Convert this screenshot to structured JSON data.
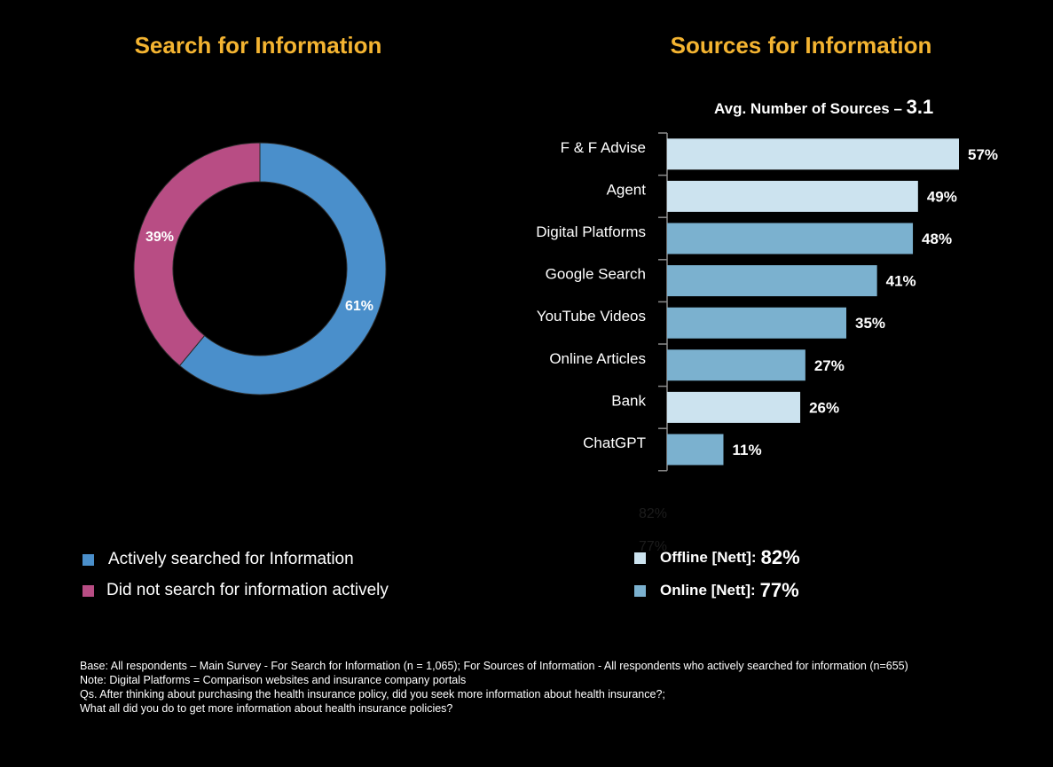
{
  "left_chart": {
    "title": "Search for Information",
    "legend": [
      {
        "label": "Actively searched for Information",
        "color": "#4a8fcb"
      },
      {
        "label": "Did not search for information actively",
        "color": "#b84d84"
      }
    ]
  },
  "right_chart": {
    "title": "Sources for Information",
    "avg_label": "Avg. Number of Sources –",
    "avg_value": "3.1",
    "ghost_labels": [
      "82%",
      "77%"
    ],
    "legend": [
      {
        "label": "Offline [Nett]:",
        "value": "82%",
        "color": "#cce3ef"
      },
      {
        "label": "Online [Nett]:",
        "value": "77%",
        "color": "#7bb1cf"
      }
    ]
  },
  "chart_data": [
    {
      "type": "pie",
      "title": "Search for Information",
      "donut": true,
      "categories": [
        "Actively searched for Information",
        "Did not search for information actively"
      ],
      "values": [
        61,
        39
      ],
      "labels": [
        "61%",
        "39%"
      ],
      "colors": [
        "#4a8fcb",
        "#b84d84"
      ]
    },
    {
      "type": "bar",
      "orientation": "horizontal",
      "title": "Sources for Information",
      "categories": [
        "F & F Advise",
        "Agent",
        "Digital Platforms",
        "Google Search",
        "YouTube Videos",
        "Online Articles",
        "Bank",
        "ChatGPT"
      ],
      "values": [
        57,
        49,
        48,
        41,
        35,
        27,
        26,
        11
      ],
      "labels": [
        "57%",
        "49%",
        "48%",
        "41%",
        "35%",
        "27%",
        "26%",
        "11%"
      ],
      "group": [
        "Offline",
        "Offline",
        "Online",
        "Online",
        "Online",
        "Online",
        "Offline",
        "Online"
      ],
      "colors": {
        "Offline": "#cce3ef",
        "Online": "#7bb1cf"
      },
      "xlim": [
        0,
        60
      ]
    }
  ],
  "notes": [
    "Base: All respondents – Main Survey - For Search for Information (n = 1,065); For Sources of Information - All respondents who actively searched for information (n=655)",
    "Note: Digital Platforms = Comparison websites and insurance company portals",
    "Qs. After thinking about purchasing the health insurance policy, did you seek more information about health insurance?;",
    "What all did you do to get more information about health insurance policies?"
  ]
}
